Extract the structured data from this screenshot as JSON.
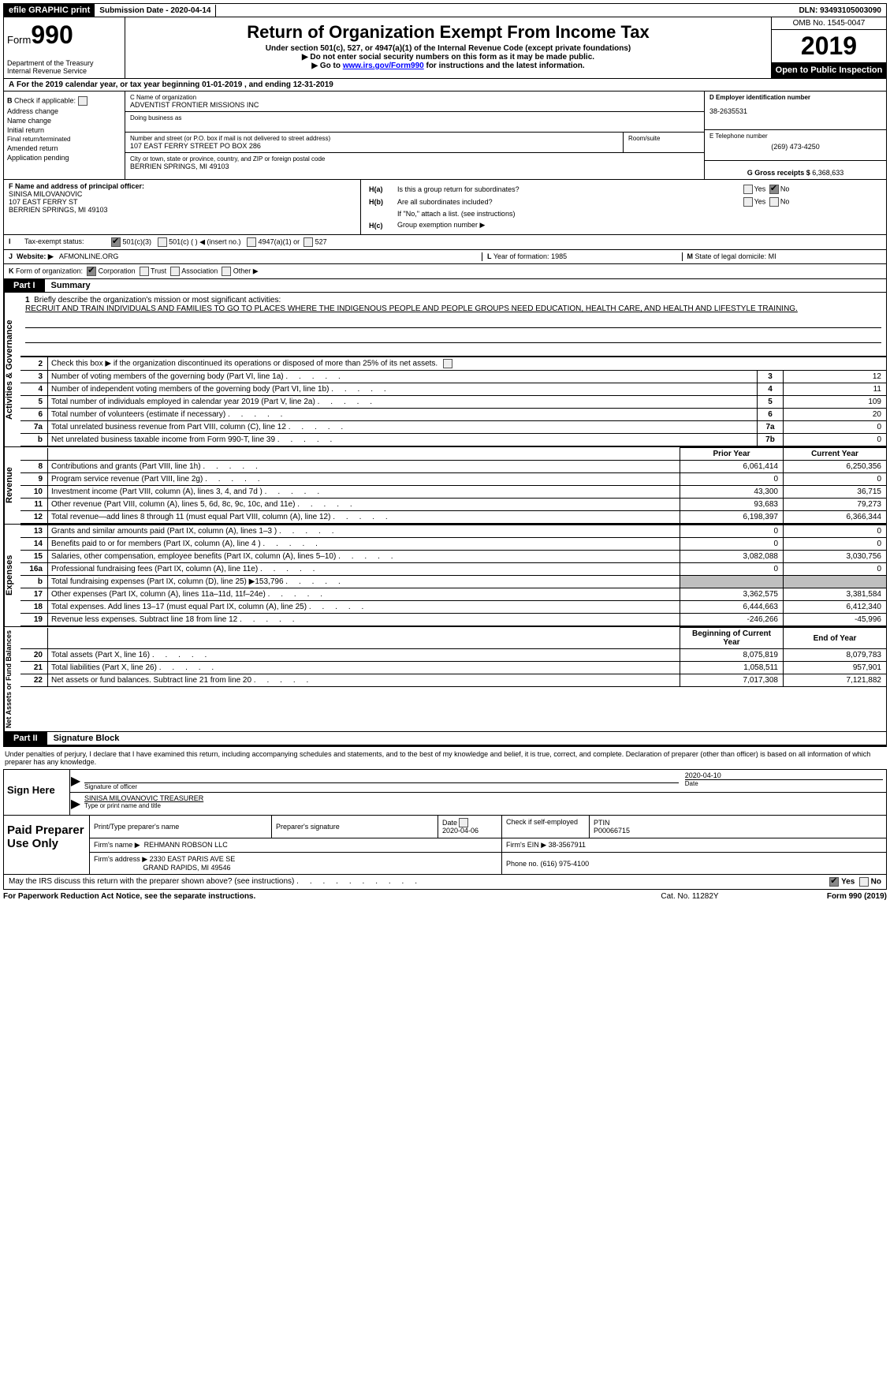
{
  "topbar": {
    "efile": "efile GRAPHIC print",
    "sub_label": "Submission Date - ",
    "sub_date": "2020-04-14",
    "dln_label": "DLN: ",
    "dln": "93493105003090"
  },
  "header": {
    "form_prefix": "Form",
    "form_no": "990",
    "dept": "Department of the Treasury\nInternal Revenue Service",
    "title": "Return of Organization Exempt From Income Tax",
    "sub1": "Under section 501(c), 527, or 4947(a)(1) of the Internal Revenue Code (except private foundations)",
    "sub2": "▶ Do not enter social security numbers on this form as it may be made public.",
    "sub3_pre": "▶ Go to ",
    "sub3_link": "www.irs.gov/Form990",
    "sub3_post": " for instructions and the latest information.",
    "omb": "OMB No. 1545-0047",
    "year": "2019",
    "open": "Open to Public Inspection"
  },
  "line_a": {
    "prefix": "A",
    "text1": "For the 2019 calendar year, or tax year beginning ",
    "begin": "01-01-2019",
    "text2": ", and ending ",
    "end": "12-31-2019"
  },
  "col_b": {
    "hdr": "B",
    "label": "Check if applicable:",
    "items": [
      "Address change",
      "Name change",
      "Initial return",
      "Final return/terminated",
      "Amended return",
      "Application pending"
    ]
  },
  "col_c": {
    "name_label": "C Name of organization",
    "name": "ADVENTIST FRONTIER MISSIONS INC",
    "dba_label": "Doing business as",
    "street_label": "Number and street (or P.O. box if mail is not delivered to street address)",
    "street": "107 EAST FERRY STREET PO BOX 286",
    "room_label": "Room/suite",
    "city_label": "City or town, state or province, country, and ZIP or foreign postal code",
    "city": "BERRIEN SPRINGS, MI  49103"
  },
  "col_de": {
    "d_label": "D Employer identification number",
    "d_val": "38-2635531",
    "e_label": "E Telephone number",
    "e_val": "(269) 473-4250",
    "g_label": "G Gross receipts $ ",
    "g_val": "6,368,633"
  },
  "cell_f": {
    "label": "F  Name and address of principal officer:",
    "l1": "SINISA MILOVANOVIC",
    "l2": "107 EAST FERRY ST",
    "l3": "BERRIEN SPRINGS, MI  49103"
  },
  "cell_h": {
    "ha_lbl": "H(a)",
    "ha_txt": "Is this a group return for subordinates?",
    "hb_lbl": "H(b)",
    "hb_txt": "Are all subordinates included?",
    "hb_note": "If \"No,\" attach a list. (see instructions)",
    "hc_lbl": "H(c)",
    "hc_txt": "Group exemption number ▶",
    "yes": "Yes",
    "no": "No"
  },
  "row_i": {
    "lbl": "I",
    "txt": "Tax-exempt status:",
    "o1": "501(c)(3)",
    "o2": "501(c) (   ) ◀ (insert no.)",
    "o3": "4947(a)(1) or",
    "o4": "527"
  },
  "row_j": {
    "lbl": "J",
    "txt": "Website: ▶",
    "val": "AFMONLINE.ORG"
  },
  "row_k": {
    "lbl": "K",
    "txt": "Form of organization:",
    "o1": "Corporation",
    "o2": "Trust",
    "o3": "Association",
    "o4": "Other ▶"
  },
  "row_lm": {
    "l_lbl": "L",
    "l_txt": "Year of formation: ",
    "l_val": "1985",
    "m_lbl": "M",
    "m_txt": "State of legal domicile: ",
    "m_val": "MI"
  },
  "part1": {
    "tab": "Part I",
    "title": "Summary"
  },
  "side": {
    "ag": "Activities & Governance",
    "rev": "Revenue",
    "exp": "Expenses",
    "na": "Net Assets or Fund Balances"
  },
  "mission": {
    "n": "1",
    "lbl": "Briefly describe the organization's mission or most significant activities:",
    "txt": "RECRUIT AND TRAIN INDIVIDUALS AND FAMILIES TO GO TO PLACES WHERE THE INDIGENOUS PEOPLE AND PEOPLE GROUPS NEED EDUCATION, HEALTH CARE, AND HEALTH AND LIFESTYLE TRAINING."
  },
  "ag_rows": [
    {
      "n": "2",
      "txt": "Check this box ▶      if the organization discontinued its operations or disposed of more than 25% of its net assets.",
      "box": "",
      "val": ""
    },
    {
      "n": "3",
      "txt": "Number of voting members of the governing body (Part VI, line 1a)",
      "box": "3",
      "val": "12"
    },
    {
      "n": "4",
      "txt": "Number of independent voting members of the governing body (Part VI, line 1b)",
      "box": "4",
      "val": "11"
    },
    {
      "n": "5",
      "txt": "Total number of individuals employed in calendar year 2019 (Part V, line 2a)",
      "box": "5",
      "val": "109"
    },
    {
      "n": "6",
      "txt": "Total number of volunteers (estimate if necessary)",
      "box": "6",
      "val": "20"
    },
    {
      "n": "7a",
      "txt": "Total unrelated business revenue from Part VIII, column (C), line 12",
      "box": "7a",
      "val": "0"
    },
    {
      "n": "b",
      "txt": "Net unrelated business taxable income from Form 990-T, line 39",
      "box": "7b",
      "val": "0"
    }
  ],
  "hdr_cols": {
    "prior": "Prior Year",
    "curr": "Current Year",
    "beg": "Beginning of Current Year",
    "end": "End of Year"
  },
  "rev_rows": [
    {
      "n": "8",
      "txt": "Contributions and grants (Part VIII, line 1h)",
      "p": "6,061,414",
      "c": "6,250,356"
    },
    {
      "n": "9",
      "txt": "Program service revenue (Part VIII, line 2g)",
      "p": "0",
      "c": "0"
    },
    {
      "n": "10",
      "txt": "Investment income (Part VIII, column (A), lines 3, 4, and 7d )",
      "p": "43,300",
      "c": "36,715"
    },
    {
      "n": "11",
      "txt": "Other revenue (Part VIII, column (A), lines 5, 6d, 8c, 9c, 10c, and 11e)",
      "p": "93,683",
      "c": "79,273"
    },
    {
      "n": "12",
      "txt": "Total revenue—add lines 8 through 11 (must equal Part VIII, column (A), line 12)",
      "p": "6,198,397",
      "c": "6,366,344"
    }
  ],
  "exp_rows": [
    {
      "n": "13",
      "txt": "Grants and similar amounts paid (Part IX, column (A), lines 1–3 )",
      "p": "0",
      "c": "0"
    },
    {
      "n": "14",
      "txt": "Benefits paid to or for members (Part IX, column (A), line 4 )",
      "p": "0",
      "c": "0"
    },
    {
      "n": "15",
      "txt": "Salaries, other compensation, employee benefits (Part IX, column (A), lines 5–10)",
      "p": "3,082,088",
      "c": "3,030,756"
    },
    {
      "n": "16a",
      "txt": "Professional fundraising fees (Part IX, column (A), line 11e)",
      "p": "0",
      "c": "0"
    },
    {
      "n": "b",
      "txt": "Total fundraising expenses (Part IX, column (D), line 25) ▶153,796",
      "p": "SHADE",
      "c": "SHADE"
    },
    {
      "n": "17",
      "txt": "Other expenses (Part IX, column (A), lines 11a–11d, 11f–24e)",
      "p": "3,362,575",
      "c": "3,381,584"
    },
    {
      "n": "18",
      "txt": "Total expenses. Add lines 13–17 (must equal Part IX, column (A), line 25)",
      "p": "6,444,663",
      "c": "6,412,340"
    },
    {
      "n": "19",
      "txt": "Revenue less expenses. Subtract line 18 from line 12",
      "p": "-246,266",
      "c": "-45,996"
    }
  ],
  "na_rows": [
    {
      "n": "20",
      "txt": "Total assets (Part X, line 16)",
      "p": "8,075,819",
      "c": "8,079,783"
    },
    {
      "n": "21",
      "txt": "Total liabilities (Part X, line 26)",
      "p": "1,058,511",
      "c": "957,901"
    },
    {
      "n": "22",
      "txt": "Net assets or fund balances. Subtract line 21 from line 20",
      "p": "7,017,308",
      "c": "7,121,882"
    }
  ],
  "part2": {
    "tab": "Part II",
    "title": "Signature Block"
  },
  "perjury": "Under penalties of perjury, I declare that I have examined this return, including accompanying schedules and statements, and to the best of my knowledge and belief, it is true, correct, and complete. Declaration of preparer (other than officer) is based on all information of which preparer has any knowledge.",
  "sign": {
    "label": "Sign Here",
    "sig_lbl": "Signature of officer",
    "date_lbl": "Date",
    "date": "2020-04-10",
    "name": "SINISA MILOVANOVIC  TREASURER",
    "name_lbl": "Type or print name and title"
  },
  "paid": {
    "label": "Paid Preparer Use Only",
    "h1": "Print/Type preparer's name",
    "h2": "Preparer's signature",
    "h3": "Date",
    "h3v": "2020-04-06",
    "h4": "Check        if self-employed",
    "h5": "PTIN",
    "h5v": "P00066715",
    "firm_lbl": "Firm's name    ▶",
    "firm": "REHMANN ROBSON LLC",
    "ein_lbl": "Firm's EIN ▶",
    "ein": "38-3567911",
    "addr_lbl": "Firm's address ▶",
    "addr1": "2330 EAST PARIS AVE SE",
    "addr2": "GRAND RAPIDS, MI  49546",
    "phone_lbl": "Phone no. ",
    "phone": "(616) 975-4100"
  },
  "discuss": {
    "txt": "May the IRS discuss this return with the preparer shown above? (see instructions)",
    "yes": "Yes",
    "no": "No"
  },
  "footer": {
    "l": "For Paperwork Reduction Act Notice, see the separate instructions.",
    "m": "Cat. No. 11282Y",
    "r": "Form 990 (2019)"
  }
}
